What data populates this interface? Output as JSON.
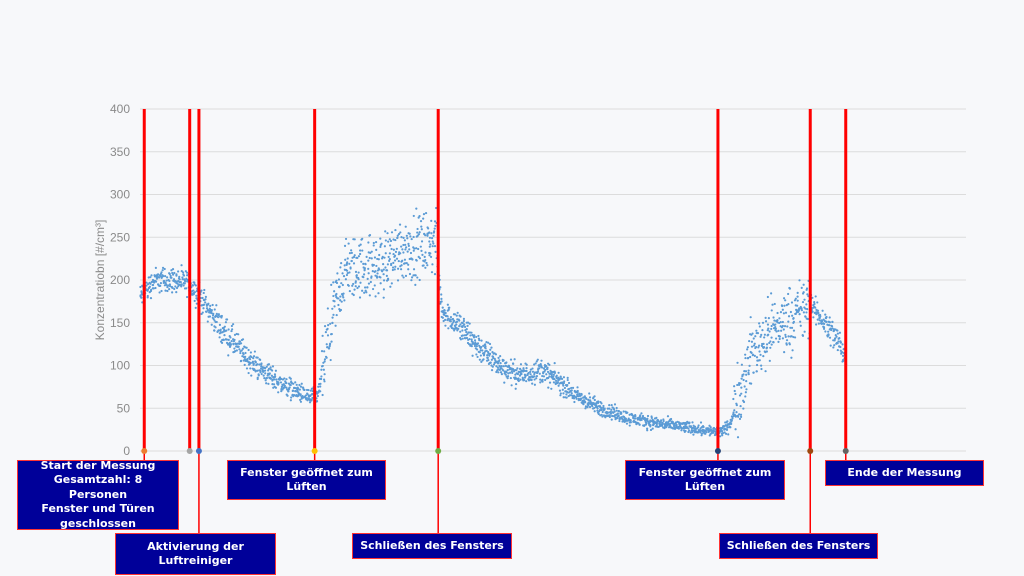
{
  "chart_data": {
    "type": "scatter",
    "title": "",
    "xlabel": "",
    "ylabel": "Konzentratiobn   [#/cm³]",
    "ylim": [
      0,
      400
    ],
    "xlim": [
      0,
      1000
    ],
    "yticks": [
      "0",
      "50",
      "100",
      "150",
      "200",
      "250",
      "300",
      "350",
      "400"
    ],
    "grid": true,
    "series": [
      {
        "name": "Konzentration",
        "color": "#5b9bd5",
        "trend": [
          [
            0,
            180
          ],
          [
            21,
            200
          ],
          [
            49,
            200
          ],
          [
            70,
            195
          ],
          [
            85,
            180
          ],
          [
            113,
            145
          ],
          [
            155,
            105
          ],
          [
            197,
            80
          ],
          [
            239,
            62
          ],
          [
            251,
            65
          ],
          [
            261,
            110
          ],
          [
            275,
            170
          ],
          [
            289,
            210
          ],
          [
            310,
            215
          ],
          [
            338,
            215
          ],
          [
            366,
            235
          ],
          [
            394,
            240
          ],
          [
            417,
            245
          ],
          [
            425,
            165
          ],
          [
            451,
            145
          ],
          [
            479,
            120
          ],
          [
            507,
            100
          ],
          [
            535,
            88
          ],
          [
            563,
            95
          ],
          [
            584,
            85
          ],
          [
            613,
            65
          ],
          [
            648,
            50
          ],
          [
            690,
            38
          ],
          [
            732,
            32
          ],
          [
            775,
            27
          ],
          [
            817,
            22
          ],
          [
            831,
            30
          ],
          [
            845,
            70
          ],
          [
            859,
            110
          ],
          [
            887,
            140
          ],
          [
            915,
            155
          ],
          [
            944,
            170
          ],
          [
            965,
            150
          ],
          [
            986,
            125
          ],
          [
            994,
            110
          ]
        ]
      }
    ],
    "events": [
      {
        "x": 6,
        "dot_color": "#ed7d31",
        "label": "Start der Messung\nGesamtzahl: 8 Personen\nFenster und Türen\ngeschlossen"
      },
      {
        "x": 70,
        "dot_color": "#a5a5a5",
        "label": ""
      },
      {
        "x": 83,
        "dot_color": "#4472c4",
        "label": "Aktivierung der\nLuftreiniger"
      },
      {
        "x": 246,
        "dot_color": "#ffc000",
        "label": "Fenster geöffnet zum\nLüften"
      },
      {
        "x": 420,
        "dot_color": "#70ad47",
        "label": "Schließen des Fensters"
      },
      {
        "x": 814,
        "dot_color": "#264478",
        "label": "Fenster geöffnet zum\nLüften"
      },
      {
        "x": 944,
        "dot_color": "#9e480e",
        "label": "Schließen des Fensters"
      },
      {
        "x": 994,
        "dot_color": "#636363",
        "label": "Ende der Messung"
      }
    ]
  }
}
